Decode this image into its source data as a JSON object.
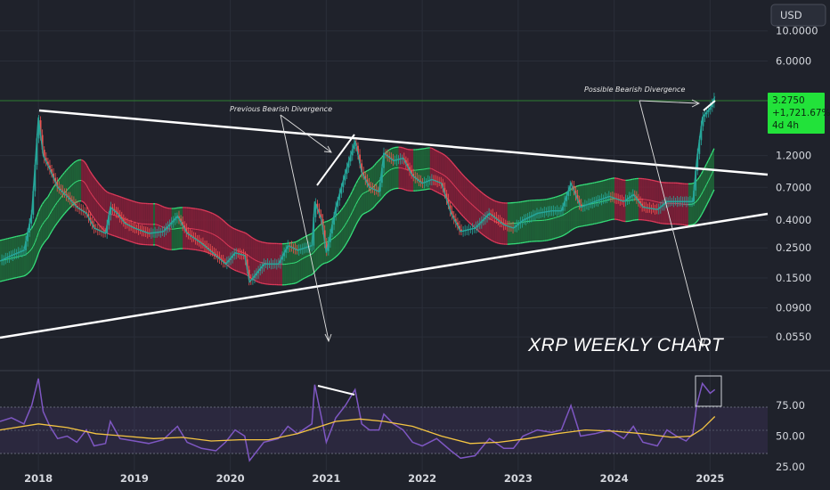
{
  "currency_button": "USD",
  "price_badge": {
    "price": "3.2750",
    "change": "+1,721.67%",
    "countdown": "4d 4h",
    "bg_color": "#22e23a"
  },
  "annotations": {
    "previous": "Previous Bearish Divergence",
    "possible": "Possible Bearish Divergence",
    "title": "XRP WEEKLY CHART"
  },
  "colors": {
    "background": "#1f222b",
    "candle_up": "#26a69a",
    "candle_down": "#ef5350",
    "band_green": "#1e6b3a",
    "band_red": "#8a1f3a",
    "band_line_green": "#35e07a",
    "band_line_red": "#e03a5a",
    "trendline": "#ffffff",
    "rsi_line": "#7e57c2",
    "rsi_ma": "#f5c542"
  },
  "chart_data": [
    {
      "type": "line",
      "title": "XRP WEEKLY CHART",
      "y_scale": "log",
      "y_ticks": [
        10.0,
        6.0,
        1.2,
        0.7,
        0.4,
        0.25,
        0.15,
        0.09,
        0.055
      ],
      "y_tick_labels": [
        "10.0000",
        "6.0000",
        "1.2000",
        "0.7000",
        "0.4000",
        "0.2500",
        "0.1500",
        "0.0900",
        "0.0550"
      ],
      "x_ticks": [
        "2018",
        "2019",
        "2020",
        "2021",
        "2022",
        "2023",
        "2024",
        "2025"
      ],
      "x_tick_values": [
        2018.0,
        2019.0,
        2020.0,
        2021.0,
        2022.0,
        2023.0,
        2024.0,
        2025.0
      ],
      "ylim": [
        0.035,
        12.5
      ],
      "xlim": [
        2017.6,
        2025.6
      ],
      "series": [
        {
          "values": [
            [
              2017.6,
              0.2
            ],
            [
              2017.72,
              0.22
            ],
            [
              2017.85,
              0.24
            ],
            [
              2017.93,
              0.45
            ],
            [
              2018.0,
              2.3
            ],
            [
              2018.05,
              1.2
            ],
            [
              2018.12,
              0.95
            ],
            [
              2018.2,
              0.7
            ],
            [
              2018.3,
              0.6
            ],
            [
              2018.4,
              0.5
            ],
            [
              2018.5,
              0.45
            ],
            [
              2018.58,
              0.35
            ],
            [
              2018.7,
              0.32
            ],
            [
              2018.75,
              0.5
            ],
            [
              2018.82,
              0.45
            ],
            [
              2018.9,
              0.38
            ],
            [
              2019.0,
              0.35
            ],
            [
              2019.15,
              0.32
            ],
            [
              2019.3,
              0.33
            ],
            [
              2019.45,
              0.43
            ],
            [
              2019.55,
              0.32
            ],
            [
              2019.7,
              0.27
            ],
            [
              2019.85,
              0.22
            ],
            [
              2019.95,
              0.19
            ],
            [
              2020.05,
              0.23
            ],
            [
              2020.15,
              0.22
            ],
            [
              2020.2,
              0.14
            ],
            [
              2020.35,
              0.19
            ],
            [
              2020.5,
              0.19
            ],
            [
              2020.6,
              0.26
            ],
            [
              2020.7,
              0.24
            ],
            [
              2020.85,
              0.26
            ],
            [
              2020.88,
              0.55
            ],
            [
              2020.95,
              0.4
            ],
            [
              2021.0,
              0.23
            ],
            [
              2021.1,
              0.5
            ],
            [
              2021.2,
              0.9
            ],
            [
              2021.3,
              1.55
            ],
            [
              2021.37,
              0.9
            ],
            [
              2021.45,
              0.7
            ],
            [
              2021.55,
              0.65
            ],
            [
              2021.6,
              1.25
            ],
            [
              2021.7,
              1.1
            ],
            [
              2021.8,
              1.15
            ],
            [
              2021.9,
              0.85
            ],
            [
              2022.0,
              0.75
            ],
            [
              2022.1,
              0.8
            ],
            [
              2022.2,
              0.75
            ],
            [
              2022.3,
              0.45
            ],
            [
              2022.4,
              0.33
            ],
            [
              2022.55,
              0.35
            ],
            [
              2022.7,
              0.45
            ],
            [
              2022.85,
              0.37
            ],
            [
              2022.95,
              0.35
            ],
            [
              2023.05,
              0.4
            ],
            [
              2023.2,
              0.45
            ],
            [
              2023.35,
              0.47
            ],
            [
              2023.45,
              0.47
            ],
            [
              2023.55,
              0.75
            ],
            [
              2023.65,
              0.5
            ],
            [
              2023.8,
              0.55
            ],
            [
              2023.95,
              0.6
            ],
            [
              2024.1,
              0.55
            ],
            [
              2024.2,
              0.62
            ],
            [
              2024.3,
              0.5
            ],
            [
              2024.45,
              0.48
            ],
            [
              2024.55,
              0.55
            ],
            [
              2024.65,
              0.55
            ],
            [
              2024.75,
              0.55
            ],
            [
              2024.82,
              0.55
            ],
            [
              2024.86,
              1.1
            ],
            [
              2024.92,
              2.3
            ],
            [
              2025.0,
              2.7
            ],
            [
              2025.05,
              3.275
            ]
          ]
        }
      ]
    },
    {
      "type": "line",
      "title": "",
      "y_ticks": [
        75,
        50,
        25
      ],
      "y_tick_labels": [
        "75.00",
        "50.00",
        "25.00"
      ],
      "ylim": [
        22,
        102
      ],
      "xlim": [
        2017.6,
        2025.6
      ],
      "series": [
        {
          "values": [
            [
              2017.6,
              62
            ],
            [
              2017.72,
              65
            ],
            [
              2017.85,
              60
            ],
            [
              2017.93,
              75
            ],
            [
              2018.0,
              97
            ],
            [
              2018.05,
              70
            ],
            [
              2018.12,
              58
            ],
            [
              2018.2,
              48
            ],
            [
              2018.3,
              50
            ],
            [
              2018.4,
              45
            ],
            [
              2018.5,
              55
            ],
            [
              2018.58,
              42
            ],
            [
              2018.7,
              44
            ],
            [
              2018.75,
              62
            ],
            [
              2018.85,
              48
            ],
            [
              2019.0,
              46
            ],
            [
              2019.15,
              44
            ],
            [
              2019.3,
              47
            ],
            [
              2019.45,
              58
            ],
            [
              2019.55,
              45
            ],
            [
              2019.7,
              40
            ],
            [
              2019.85,
              38
            ],
            [
              2019.95,
              45
            ],
            [
              2020.05,
              55
            ],
            [
              2020.15,
              50
            ],
            [
              2020.2,
              30
            ],
            [
              2020.35,
              45
            ],
            [
              2020.5,
              48
            ],
            [
              2020.6,
              58
            ],
            [
              2020.7,
              52
            ],
            [
              2020.85,
              60
            ],
            [
              2020.88,
              92
            ],
            [
              2020.95,
              65
            ],
            [
              2021.0,
              45
            ],
            [
              2021.1,
              65
            ],
            [
              2021.2,
              75
            ],
            [
              2021.3,
              88
            ],
            [
              2021.37,
              60
            ],
            [
              2021.45,
              55
            ],
            [
              2021.55,
              55
            ],
            [
              2021.6,
              68
            ],
            [
              2021.7,
              60
            ],
            [
              2021.8,
              55
            ],
            [
              2021.9,
              45
            ],
            [
              2022.0,
              42
            ],
            [
              2022.15,
              48
            ],
            [
              2022.3,
              38
            ],
            [
              2022.4,
              32
            ],
            [
              2022.55,
              34
            ],
            [
              2022.7,
              48
            ],
            [
              2022.85,
              40
            ],
            [
              2022.95,
              40
            ],
            [
              2023.05,
              50
            ],
            [
              2023.2,
              55
            ],
            [
              2023.35,
              53
            ],
            [
              2023.45,
              55
            ],
            [
              2023.55,
              75
            ],
            [
              2023.65,
              50
            ],
            [
              2023.8,
              52
            ],
            [
              2023.95,
              55
            ],
            [
              2024.1,
              48
            ],
            [
              2024.2,
              58
            ],
            [
              2024.3,
              45
            ],
            [
              2024.45,
              42
            ],
            [
              2024.55,
              55
            ],
            [
              2024.65,
              50
            ],
            [
              2024.75,
              46
            ],
            [
              2024.82,
              52
            ],
            [
              2024.86,
              75
            ],
            [
              2024.92,
              93
            ],
            [
              2025.0,
              85
            ],
            [
              2025.05,
              88
            ]
          ]
        },
        {
          "values": [
            [
              2017.6,
              55
            ],
            [
              2018.0,
              60
            ],
            [
              2018.3,
              57
            ],
            [
              2018.6,
              52
            ],
            [
              2018.9,
              50
            ],
            [
              2019.2,
              48
            ],
            [
              2019.5,
              49
            ],
            [
              2019.8,
              46
            ],
            [
              2020.1,
              47
            ],
            [
              2020.4,
              47
            ],
            [
              2020.7,
              52
            ],
            [
              2020.9,
              57
            ],
            [
              2021.1,
              62
            ],
            [
              2021.35,
              64
            ],
            [
              2021.6,
              62
            ],
            [
              2021.9,
              58
            ],
            [
              2022.2,
              50
            ],
            [
              2022.5,
              44
            ],
            [
              2022.8,
              45
            ],
            [
              2023.1,
              48
            ],
            [
              2023.4,
              52
            ],
            [
              2023.7,
              55
            ],
            [
              2024.0,
              54
            ],
            [
              2024.3,
              52
            ],
            [
              2024.6,
              49
            ],
            [
              2024.8,
              50
            ],
            [
              2024.92,
              56
            ],
            [
              2025.05,
              66
            ]
          ]
        }
      ]
    }
  ]
}
